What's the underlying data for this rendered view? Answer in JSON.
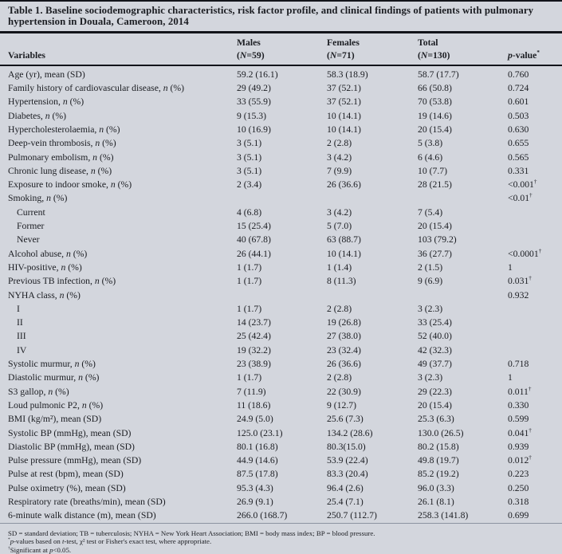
{
  "title_lines": [
    "Table 1. Baseline sociodemographic characteristics, risk factor profile, and clinical findings of patients with pulmonary",
    "hypertension in Douala, Cameroon, 2014"
  ],
  "table": {
    "header_row1": [
      "",
      "Males",
      "Females",
      "Total",
      ""
    ],
    "header_row2": [
      "Variables",
      "(N=59)",
      "(N=71)",
      "(N=130)",
      "p-value*"
    ],
    "rows": [
      {
        "label": "Age (yr), mean (SD)",
        "indent": false,
        "cells": [
          "59.2 (16.1)",
          "58.3 (18.9)",
          "58.7 (17.7)",
          "0.760"
        ]
      },
      {
        "label": "Family history of cardiovascular disease, n (%)",
        "indent": false,
        "cells": [
          "29 (49.2)",
          "37 (52.1)",
          "66 (50.8)",
          "0.724"
        ]
      },
      {
        "label": "Hypertension, n (%)",
        "indent": false,
        "cells": [
          "33 (55.9)",
          "37 (52.1)",
          "70 (53.8)",
          "0.601"
        ]
      },
      {
        "label": "Diabetes, n (%)",
        "indent": false,
        "cells": [
          "9 (15.3)",
          "10 (14.1)",
          "19 (14.6)",
          "0.503"
        ]
      },
      {
        "label": "Hypercholesterolaemia, n (%)",
        "indent": false,
        "cells": [
          "10 (16.9)",
          "10 (14.1)",
          "20 (15.4)",
          "0.630"
        ]
      },
      {
        "label": "Deep-vein thrombosis, n (%)",
        "indent": false,
        "cells": [
          "3 (5.1)",
          "2 (2.8)",
          "5 (3.8)",
          "0.655"
        ]
      },
      {
        "label": "Pulmonary embolism, n (%)",
        "indent": false,
        "cells": [
          "3 (5.1)",
          "3 (4.2)",
          "6 (4.6)",
          "0.565"
        ]
      },
      {
        "label": "Chronic lung disease, n (%)",
        "indent": false,
        "cells": [
          "3 (5.1)",
          "7 (9.9)",
          "10 (7.7)",
          "0.331"
        ]
      },
      {
        "label": "Exposure to indoor smoke, n (%)",
        "indent": false,
        "cells": [
          "2 (3.4)",
          "26 (36.6)",
          "28 (21.5)",
          "<0.001†"
        ]
      },
      {
        "label": "Smoking, n (%)",
        "indent": false,
        "cells": [
          "",
          "",
          "",
          "<0.01†"
        ]
      },
      {
        "label": "Current",
        "indent": true,
        "cells": [
          "4 (6.8)",
          "3 (4.2)",
          "7 (5.4)",
          ""
        ]
      },
      {
        "label": "Former",
        "indent": true,
        "cells": [
          "15 (25.4)",
          "5 (7.0)",
          "20 (15.4)",
          ""
        ]
      },
      {
        "label": "Never",
        "indent": true,
        "cells": [
          "40 (67.8)",
          "63 (88.7)",
          "103 (79.2)",
          ""
        ]
      },
      {
        "label": "Alcohol abuse, n (%)",
        "indent": false,
        "cells": [
          "26 (44.1)",
          "10 (14.1)",
          "36 (27.7)",
          "<0.0001†"
        ]
      },
      {
        "label": "HIV-positive, n (%)",
        "indent": false,
        "cells": [
          "1 (1.7)",
          "1 (1.4)",
          "2 (1.5)",
          "1"
        ]
      },
      {
        "label": "Previous TB infection, n (%)",
        "indent": false,
        "cells": [
          "1 (1.7)",
          "8 (11.3)",
          "9 (6.9)",
          "0.031†"
        ]
      },
      {
        "label": "NYHA class, n (%)",
        "indent": false,
        "cells": [
          "",
          "",
          "",
          "0.932"
        ]
      },
      {
        "label": "I",
        "indent": true,
        "cells": [
          "1 (1.7)",
          "2 (2.8)",
          "3 (2.3)",
          ""
        ]
      },
      {
        "label": "II",
        "indent": true,
        "cells": [
          "14 (23.7)",
          "19 (26.8)",
          "33 (25.4)",
          ""
        ]
      },
      {
        "label": "III",
        "indent": true,
        "cells": [
          "25 (42.4)",
          "27 (38.0)",
          "52 (40.0)",
          ""
        ]
      },
      {
        "label": "IV",
        "indent": true,
        "cells": [
          "19 (32.2)",
          "23 (32.4)",
          "42 (32.3)",
          ""
        ]
      },
      {
        "label": "Systolic murmur, n (%)",
        "indent": false,
        "cells": [
          "23 (38.9)",
          "26 (36.6)",
          "49 (37.7)",
          "0.718"
        ]
      },
      {
        "label": "Diastolic murmur, n (%)",
        "indent": false,
        "cells": [
          "1 (1.7)",
          "2 (2.8)",
          "3 (2.3)",
          "1"
        ]
      },
      {
        "label": "S3 gallop, n (%)",
        "indent": false,
        "cells": [
          "7 (11.9)",
          "22 (30.9)",
          "29 (22.3)",
          "0.011†"
        ]
      },
      {
        "label": "Loud pulmonic P2, n (%)",
        "indent": false,
        "cells": [
          "11 (18.6)",
          "9 (12.7)",
          "20 (15.4)",
          "0.330"
        ]
      },
      {
        "label": "BMI (kg/m²), mean (SD)",
        "indent": false,
        "cells": [
          "24.9 (5.0)",
          "25.6 (7.3)",
          "25.3 (6.3)",
          "0.599"
        ]
      },
      {
        "label": "Systolic BP (mmHg), mean (SD)",
        "indent": false,
        "cells": [
          "125.0 (23.1)",
          "134.2 (28.6)",
          "130.0 (26.5)",
          "0.041†"
        ]
      },
      {
        "label": "Diastolic BP (mmHg), mean (SD)",
        "indent": false,
        "cells": [
          "80.1 (16.8)",
          "80.3(15.0)",
          "80.2 (15.8)",
          "0.939"
        ]
      },
      {
        "label": "Pulse pressure (mmHg), mean (SD)",
        "indent": false,
        "cells": [
          "44.9 (14.6)",
          "53.9 (22.4)",
          "49.8 (19.7)",
          "0.012†"
        ]
      },
      {
        "label": "Pulse at rest (bpm), mean (SD)",
        "indent": false,
        "cells": [
          "87.5 (17.8)",
          "83.3 (20.4)",
          "85.2 (19.2)",
          "0.223"
        ]
      },
      {
        "label": "Pulse oximetry (%), mean (SD)",
        "indent": false,
        "cells": [
          "95.3 (4.3)",
          "96.4 (2.6)",
          "96.0 (3.3)",
          "0.250"
        ]
      },
      {
        "label": "Respiratory rate (breaths/min), mean (SD)",
        "indent": false,
        "cells": [
          "26.9 (9.1)",
          "25.4 (7.1)",
          "26.1 (8.1)",
          "0.318"
        ]
      },
      {
        "label": "6-minute walk distance (m), mean (SD)",
        "indent": false,
        "cells": [
          "266.0 (168.7)",
          "250.7 (112.7)",
          "258.3 (141.8)",
          "0.699"
        ]
      }
    ]
  },
  "footnotes": [
    "SD = standard deviation; TB = tuberculosis; NYHA = New York Heart Association; BMI = body mass index; BP = blood pressure.",
    "*p-values based on t-test, χ² test or Fisher's exact test, where appropriate.",
    "†Significant at p<0.05."
  ],
  "colors": {
    "background": "#d3d6dd",
    "text": "#1b1d22",
    "rule": "#12141a",
    "hairline": "#8d94a1"
  }
}
